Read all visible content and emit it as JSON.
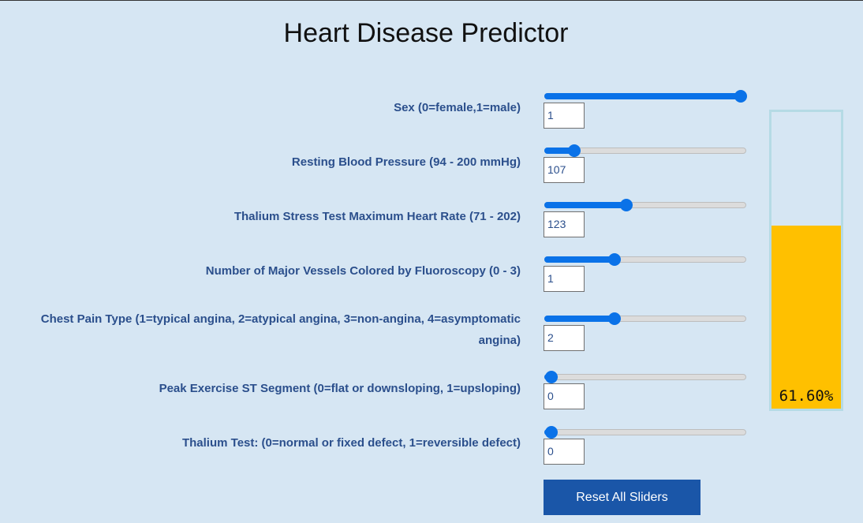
{
  "title": "Heart Disease Predictor",
  "accent_color": "#0a72e8",
  "gauge_color": "#ffc000",
  "fields": [
    {
      "label": "Sex (0=female,1=male)",
      "value": "1",
      "min": 0,
      "max": 1
    },
    {
      "label": "Resting Blood Pressure (94 - 200 mmHg)",
      "value": "107",
      "min": 94,
      "max": 200
    },
    {
      "label": "Thalium Stress Test Maximum Heart Rate (71 - 202)",
      "value": "123",
      "min": 71,
      "max": 202
    },
    {
      "label": "Number of Major Vessels Colored by Fluoroscopy (0 - 3)",
      "value": "1",
      "min": 0,
      "max": 3
    },
    {
      "label_line1": "Chest Pain Type (1=typical angina, 2=atypical angina, 3=non-angina, 4=asymptomatic",
      "label_line2": "angina)",
      "value": "2",
      "min": 1,
      "max": 4
    },
    {
      "label": "Peak Exercise ST Segment (0=flat or downsloping, 1=upsloping)",
      "value": "0",
      "min": 0,
      "max": 1
    },
    {
      "label": "Thalium Test: (0=normal or fixed defect, 1=reversible defect)",
      "value": "0",
      "min": 0,
      "max": 1
    }
  ],
  "reset_label": "Reset All Sliders",
  "prediction": {
    "text": "61.60%",
    "level": 0.616
  }
}
